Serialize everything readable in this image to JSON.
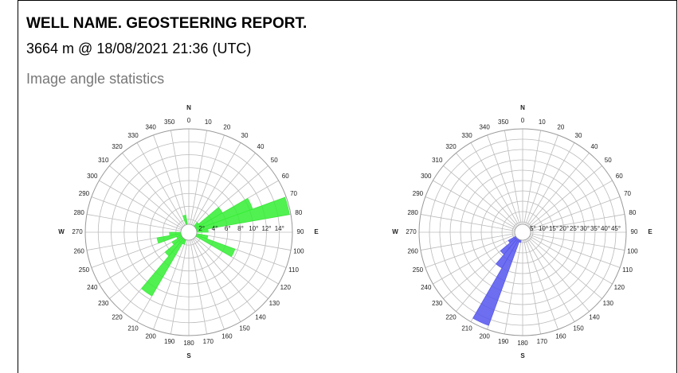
{
  "header": {
    "title": "WELL NAME. GEOSTEERING REPORT.",
    "subtitle": "3664 m @ 18/08/2021 21:36 (UTC)",
    "section": "Image angle statistics"
  },
  "chart_data": [
    {
      "type": "rose",
      "color": "#33ee33",
      "direction_labels": [
        "N",
        "E",
        "S",
        "W"
      ],
      "categories": [
        0,
        10,
        20,
        30,
        40,
        50,
        60,
        70,
        80,
        90,
        100,
        110,
        120,
        130,
        140,
        150,
        160,
        170,
        180,
        190,
        200,
        210,
        220,
        230,
        240,
        250,
        260,
        270,
        280,
        290,
        300,
        310,
        320,
        330,
        340,
        350
      ],
      "values": [
        0,
        0,
        0,
        0,
        2,
        6,
        10.5,
        15.8,
        3,
        1,
        3,
        7.6,
        0,
        0,
        0,
        0,
        0,
        0,
        0,
        0,
        2,
        11.4,
        4.8,
        3,
        2,
        5,
        3,
        0,
        0,
        0,
        0,
        0,
        0,
        1,
        2.7,
        0
      ],
      "rlim": [
        0,
        16
      ],
      "rticks": [
        {
          "value": 2,
          "label": "2°"
        },
        {
          "value": 4,
          "label": "4°"
        },
        {
          "value": 6,
          "label": "6°"
        },
        {
          "value": 8,
          "label": "8°"
        },
        {
          "value": 10,
          "label": "10°"
        },
        {
          "value": 12,
          "label": "12°"
        },
        {
          "value": 14,
          "label": "14°"
        }
      ]
    },
    {
      "type": "rose",
      "color": "#5555ee",
      "direction_labels": [
        "N",
        "E",
        "S",
        "W"
      ],
      "categories": [
        0,
        10,
        20,
        30,
        40,
        50,
        60,
        70,
        80,
        90,
        100,
        110,
        120,
        130,
        140,
        150,
        160,
        170,
        180,
        190,
        200,
        210,
        220,
        230,
        240,
        250,
        260,
        270,
        280,
        290,
        300,
        310,
        320,
        330,
        340,
        350
      ],
      "values": [
        0,
        0,
        0,
        2,
        3,
        2,
        0,
        0,
        0,
        0,
        0,
        0,
        0,
        0,
        0,
        0,
        0,
        0,
        0,
        5,
        48,
        20,
        14,
        8,
        0,
        0,
        0,
        0,
        0,
        0,
        0,
        0,
        0,
        0,
        0,
        0
      ],
      "rlim": [
        0,
        50
      ],
      "rticks": [
        {
          "value": 5,
          "label": "5°"
        },
        {
          "value": 10,
          "label": "10°"
        },
        {
          "value": 15,
          "label": "15°"
        },
        {
          "value": 20,
          "label": "20°"
        },
        {
          "value": 25,
          "label": "25°"
        },
        {
          "value": 30,
          "label": "30°"
        },
        {
          "value": 35,
          "label": "35°"
        },
        {
          "value": 40,
          "label": "40°"
        },
        {
          "value": 45,
          "label": "45°"
        }
      ]
    }
  ]
}
